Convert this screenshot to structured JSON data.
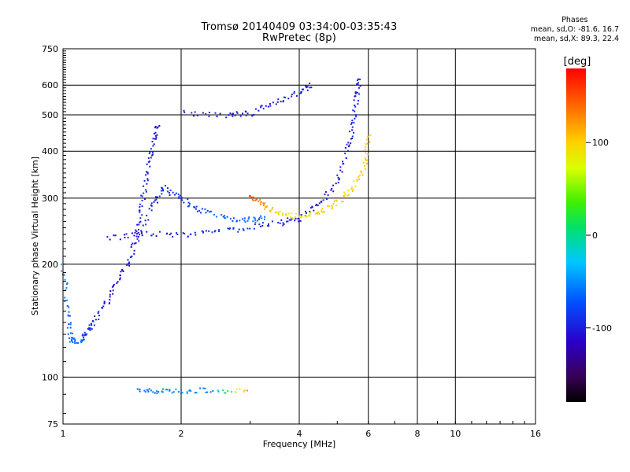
{
  "header": {
    "title_line1": "Tromsø 20140409 03:34:00-03:35:43",
    "title_line2": "RwPretec (8p)"
  },
  "phase_note": {
    "heading": "Phases",
    "line1": "mean, sd,O: -81.6, 16.7",
    "line2": "mean, sd,X:  89.3, 22.4"
  },
  "colorbar": {
    "label": "[deg]",
    "ticks": [
      {
        "value": 100,
        "label": "100"
      },
      {
        "value": 0,
        "label": "0"
      },
      {
        "value": -100,
        "label": "-100"
      }
    ],
    "range": [
      -180,
      180
    ],
    "colormap": "rainbow (black–purple–blue–cyan–green–yellow–orange–red)"
  },
  "chart_data": {
    "type": "scatter",
    "xlabel": "Frequency [MHz]",
    "ylabel": "Stationary phase Virtual Height [km]",
    "xscale": "log",
    "yscale": "log",
    "xlim": [
      1,
      16
    ],
    "ylim": [
      75,
      750
    ],
    "xticks": [
      {
        "value": 1,
        "label": "1"
      },
      {
        "value": 2,
        "label": "2"
      },
      {
        "value": 4,
        "label": "4"
      },
      {
        "value": 6,
        "label": "6"
      },
      {
        "value": 8,
        "label": "8"
      },
      {
        "value": 10,
        "label": "10"
      },
      {
        "value": 16,
        "label": "16"
      }
    ],
    "yticks": [
      {
        "value": 75,
        "label": "75"
      },
      {
        "value": 100,
        "label": "100"
      },
      {
        "value": 200,
        "label": "200"
      },
      {
        "value": 300,
        "label": "300"
      },
      {
        "value": 400,
        "label": "400"
      },
      {
        "value": 500,
        "label": "500"
      },
      {
        "value": 600,
        "label": "600"
      },
      {
        "value": 750,
        "label": "750"
      }
    ],
    "grid": true,
    "traces": [
      {
        "points": [
          [
            1.0,
            200,
            -40
          ],
          [
            1.03,
            150,
            -70
          ],
          [
            1.05,
            125,
            -70
          ],
          [
            1.1,
            125,
            -60
          ],
          [
            1.15,
            130,
            -90
          ],
          [
            1.2,
            140,
            -100
          ],
          [
            1.3,
            160,
            -110
          ],
          [
            1.4,
            185,
            -110
          ],
          [
            1.5,
            210,
            -105
          ],
          [
            1.55,
            250,
            -100
          ],
          [
            1.6,
            300,
            -95
          ],
          [
            1.65,
            360,
            -100
          ],
          [
            1.7,
            420,
            -100
          ],
          [
            1.75,
            470,
            -105
          ]
        ]
      },
      {
        "points": [
          [
            1.55,
            230,
            -105
          ],
          [
            1.7,
            290,
            -100
          ],
          [
            1.8,
            320,
            -95
          ],
          [
            2.0,
            300,
            -90
          ],
          [
            2.2,
            280,
            -80
          ],
          [
            2.6,
            265,
            -70
          ],
          [
            3.0,
            262,
            -65
          ],
          [
            3.3,
            265,
            -65
          ]
        ]
      },
      {
        "points": [
          [
            1.3,
            235,
            -110
          ],
          [
            1.6,
            240,
            -105
          ],
          [
            2.0,
            240,
            -95
          ],
          [
            2.4,
            244,
            -90
          ],
          [
            3.0,
            250,
            -90
          ],
          [
            3.6,
            258,
            -95
          ],
          [
            4.0,
            265,
            -100
          ],
          [
            4.5,
            290,
            -105
          ],
          [
            5.0,
            330,
            -110
          ],
          [
            5.3,
            400,
            -100
          ],
          [
            5.5,
            470,
            -95
          ],
          [
            5.6,
            560,
            -100
          ],
          [
            5.7,
            620,
            -100
          ]
        ]
      },
      {
        "points": [
          [
            2.0,
            505,
            -100
          ],
          [
            2.6,
            500,
            -105
          ],
          [
            3.0,
            505,
            -100
          ],
          [
            3.5,
            540,
            -105
          ],
          [
            4.0,
            575,
            -100
          ],
          [
            4.3,
            600,
            -105
          ]
        ]
      },
      {
        "points": [
          [
            3.0,
            305,
            150
          ],
          [
            3.2,
            290,
            130
          ],
          [
            3.5,
            275,
            95
          ],
          [
            4.0,
            268,
            80
          ],
          [
            4.5,
            275,
            90
          ],
          [
            5.0,
            290,
            100
          ],
          [
            5.5,
            320,
            95
          ],
          [
            5.9,
            370,
            100
          ],
          [
            6.0,
            440,
            95
          ]
        ]
      },
      {
        "points": [
          [
            1.55,
            92,
            -70
          ],
          [
            1.75,
            92,
            -60
          ],
          [
            2.0,
            92,
            -50
          ],
          [
            2.4,
            92,
            -60
          ],
          [
            3.0,
            92,
            130
          ]
        ]
      }
    ]
  }
}
